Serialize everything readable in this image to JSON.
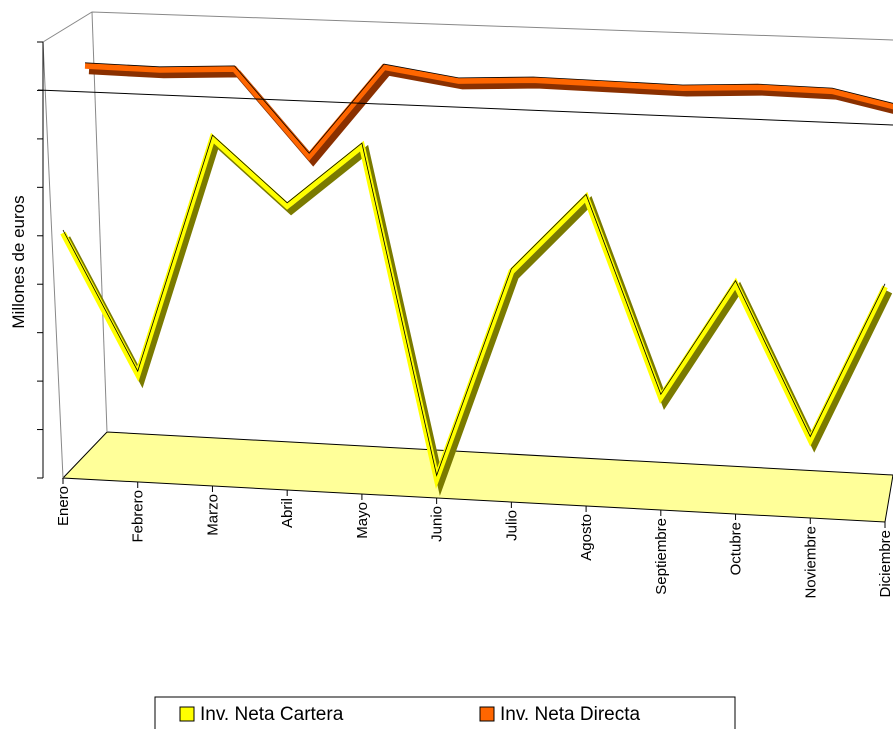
{
  "chart_data": {
    "type": "line3d",
    "y_axis_label": "Millones de euros",
    "categories": [
      "Enero",
      "Febrero",
      "Marzo",
      "Abril",
      "Mayo",
      "Junio",
      "Julio",
      "Agosto",
      "Septiembre",
      "Octubre",
      "Noviembre",
      "Diciembre"
    ],
    "series": [
      {
        "name": "Inv. Neta Cartera",
        "color": "#ffff00",
        "values": [
          5.0,
          2.2,
          7.1,
          5.8,
          7.1,
          0.4,
          4.7,
          6.3,
          2.3,
          4.7,
          1.6,
          4.8
        ]
      },
      {
        "name": "Inv. Neta Directa",
        "color": "#ff6600",
        "values": [
          7.8,
          7.8,
          7.9,
          6.2,
          8.1,
          7.9,
          8.0,
          8.0,
          8.0,
          8.1,
          8.1,
          7.8
        ]
      }
    ],
    "ylim": [
      0,
      9
    ],
    "yticks": [
      0,
      1,
      2,
      3,
      4,
      5,
      6,
      7,
      8,
      9
    ],
    "legend": "bottom"
  }
}
